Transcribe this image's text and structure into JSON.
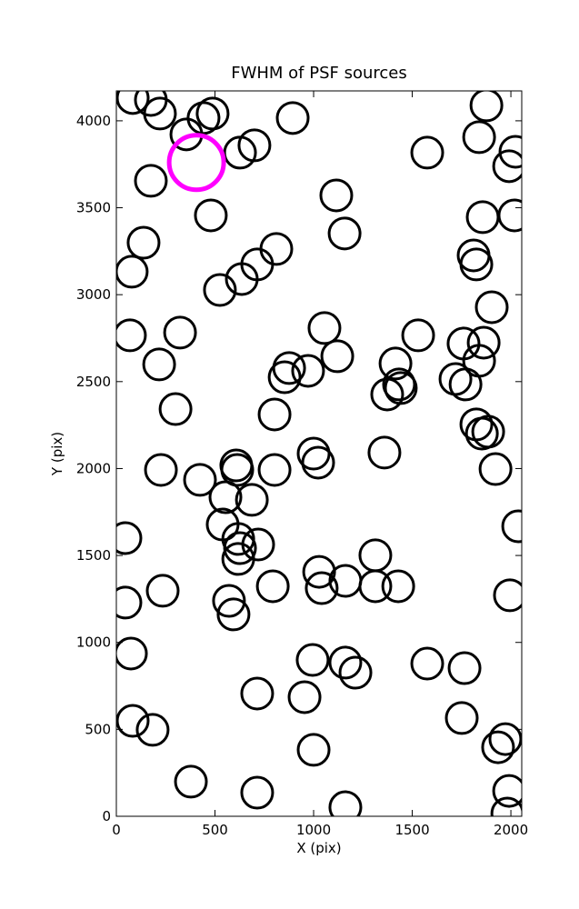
{
  "chart_data": {
    "type": "scatter",
    "title": "FWHM of PSF sources",
    "x_label": "X (pix)",
    "y_label": "Y (pix)",
    "xlim": [
      0,
      2055
    ],
    "ylim": [
      0,
      4172
    ],
    "xticks": [
      0,
      500,
      1000,
      1500,
      2000
    ],
    "yticks": [
      0,
      500,
      1000,
      1500,
      2000,
      2500,
      3000,
      3500,
      4000
    ],
    "series": [
      {
        "color": "#000000",
        "x": [
          83,
          175,
          221,
          355,
          442,
          488,
          627,
          700,
          894,
          175,
          479,
          1115,
          1157,
          1576,
          1876,
          1839,
          2023,
          1991,
          1857,
          2018,
          138,
          78,
          811,
          714,
          636,
          525,
          1811,
          1825,
          1903,
          69,
          323,
          217,
          300,
          1055,
          1120,
          876,
          853,
          972,
          802,
          1530,
          1415,
          1433,
          1442,
          1373,
          1760,
          1862,
          1839,
          1719,
          1770,
          1825,
          1885,
          1853,
          1359,
          1922,
          226,
          424,
          608,
          613,
          802,
          1000,
          1023,
          553,
          687,
          539,
          618,
          627,
          618,
          719,
          46,
          2037,
          1313,
          1028,
          1041,
          1161,
          1313,
          1429,
          793,
          235,
          46,
          571,
          594,
          1995,
          74,
          995,
          1161,
          1212,
          1576,
          1765,
          714,
          954,
          83,
          184,
          1751,
          1972,
          1935,
          1000,
          378,
          714,
          1161,
          1991,
          1982
        ],
        "y": [
          4131,
          4120,
          4042,
          3922,
          4016,
          4042,
          3817,
          3859,
          4016,
          3655,
          3456,
          3571,
          3352,
          3817,
          4089,
          3906,
          3822,
          3739,
          3446,
          3456,
          3299,
          3132,
          3263,
          3174,
          3090,
          3027,
          3226,
          3174,
          2928,
          2766,
          2782,
          2599,
          2342,
          2808,
          2646,
          2578,
          2525,
          2562,
          2311,
          2766,
          2604,
          2484,
          2463,
          2426,
          2719,
          2724,
          2620,
          2515,
          2484,
          2254,
          2212,
          2201,
          2092,
          1997,
          1992,
          1935,
          2018,
          1992,
          1992,
          2086,
          2034,
          1835,
          1820,
          1678,
          1595,
          1542,
          1480,
          1563,
          1600,
          1668,
          1501,
          1406,
          1312,
          1354,
          1323,
          1323,
          1323,
          1297,
          1229,
          1239,
          1161,
          1271,
          936,
          899,
          884,
          826,
          878,
          852,
          706,
          685,
          549,
          497,
          565,
          444,
          397,
          382,
          199,
          136,
          52,
          146,
          16
        ]
      },
      {
        "color": "#ff00ff",
        "x": [
          406
        ],
        "y": [
          3760
        ]
      }
    ]
  }
}
